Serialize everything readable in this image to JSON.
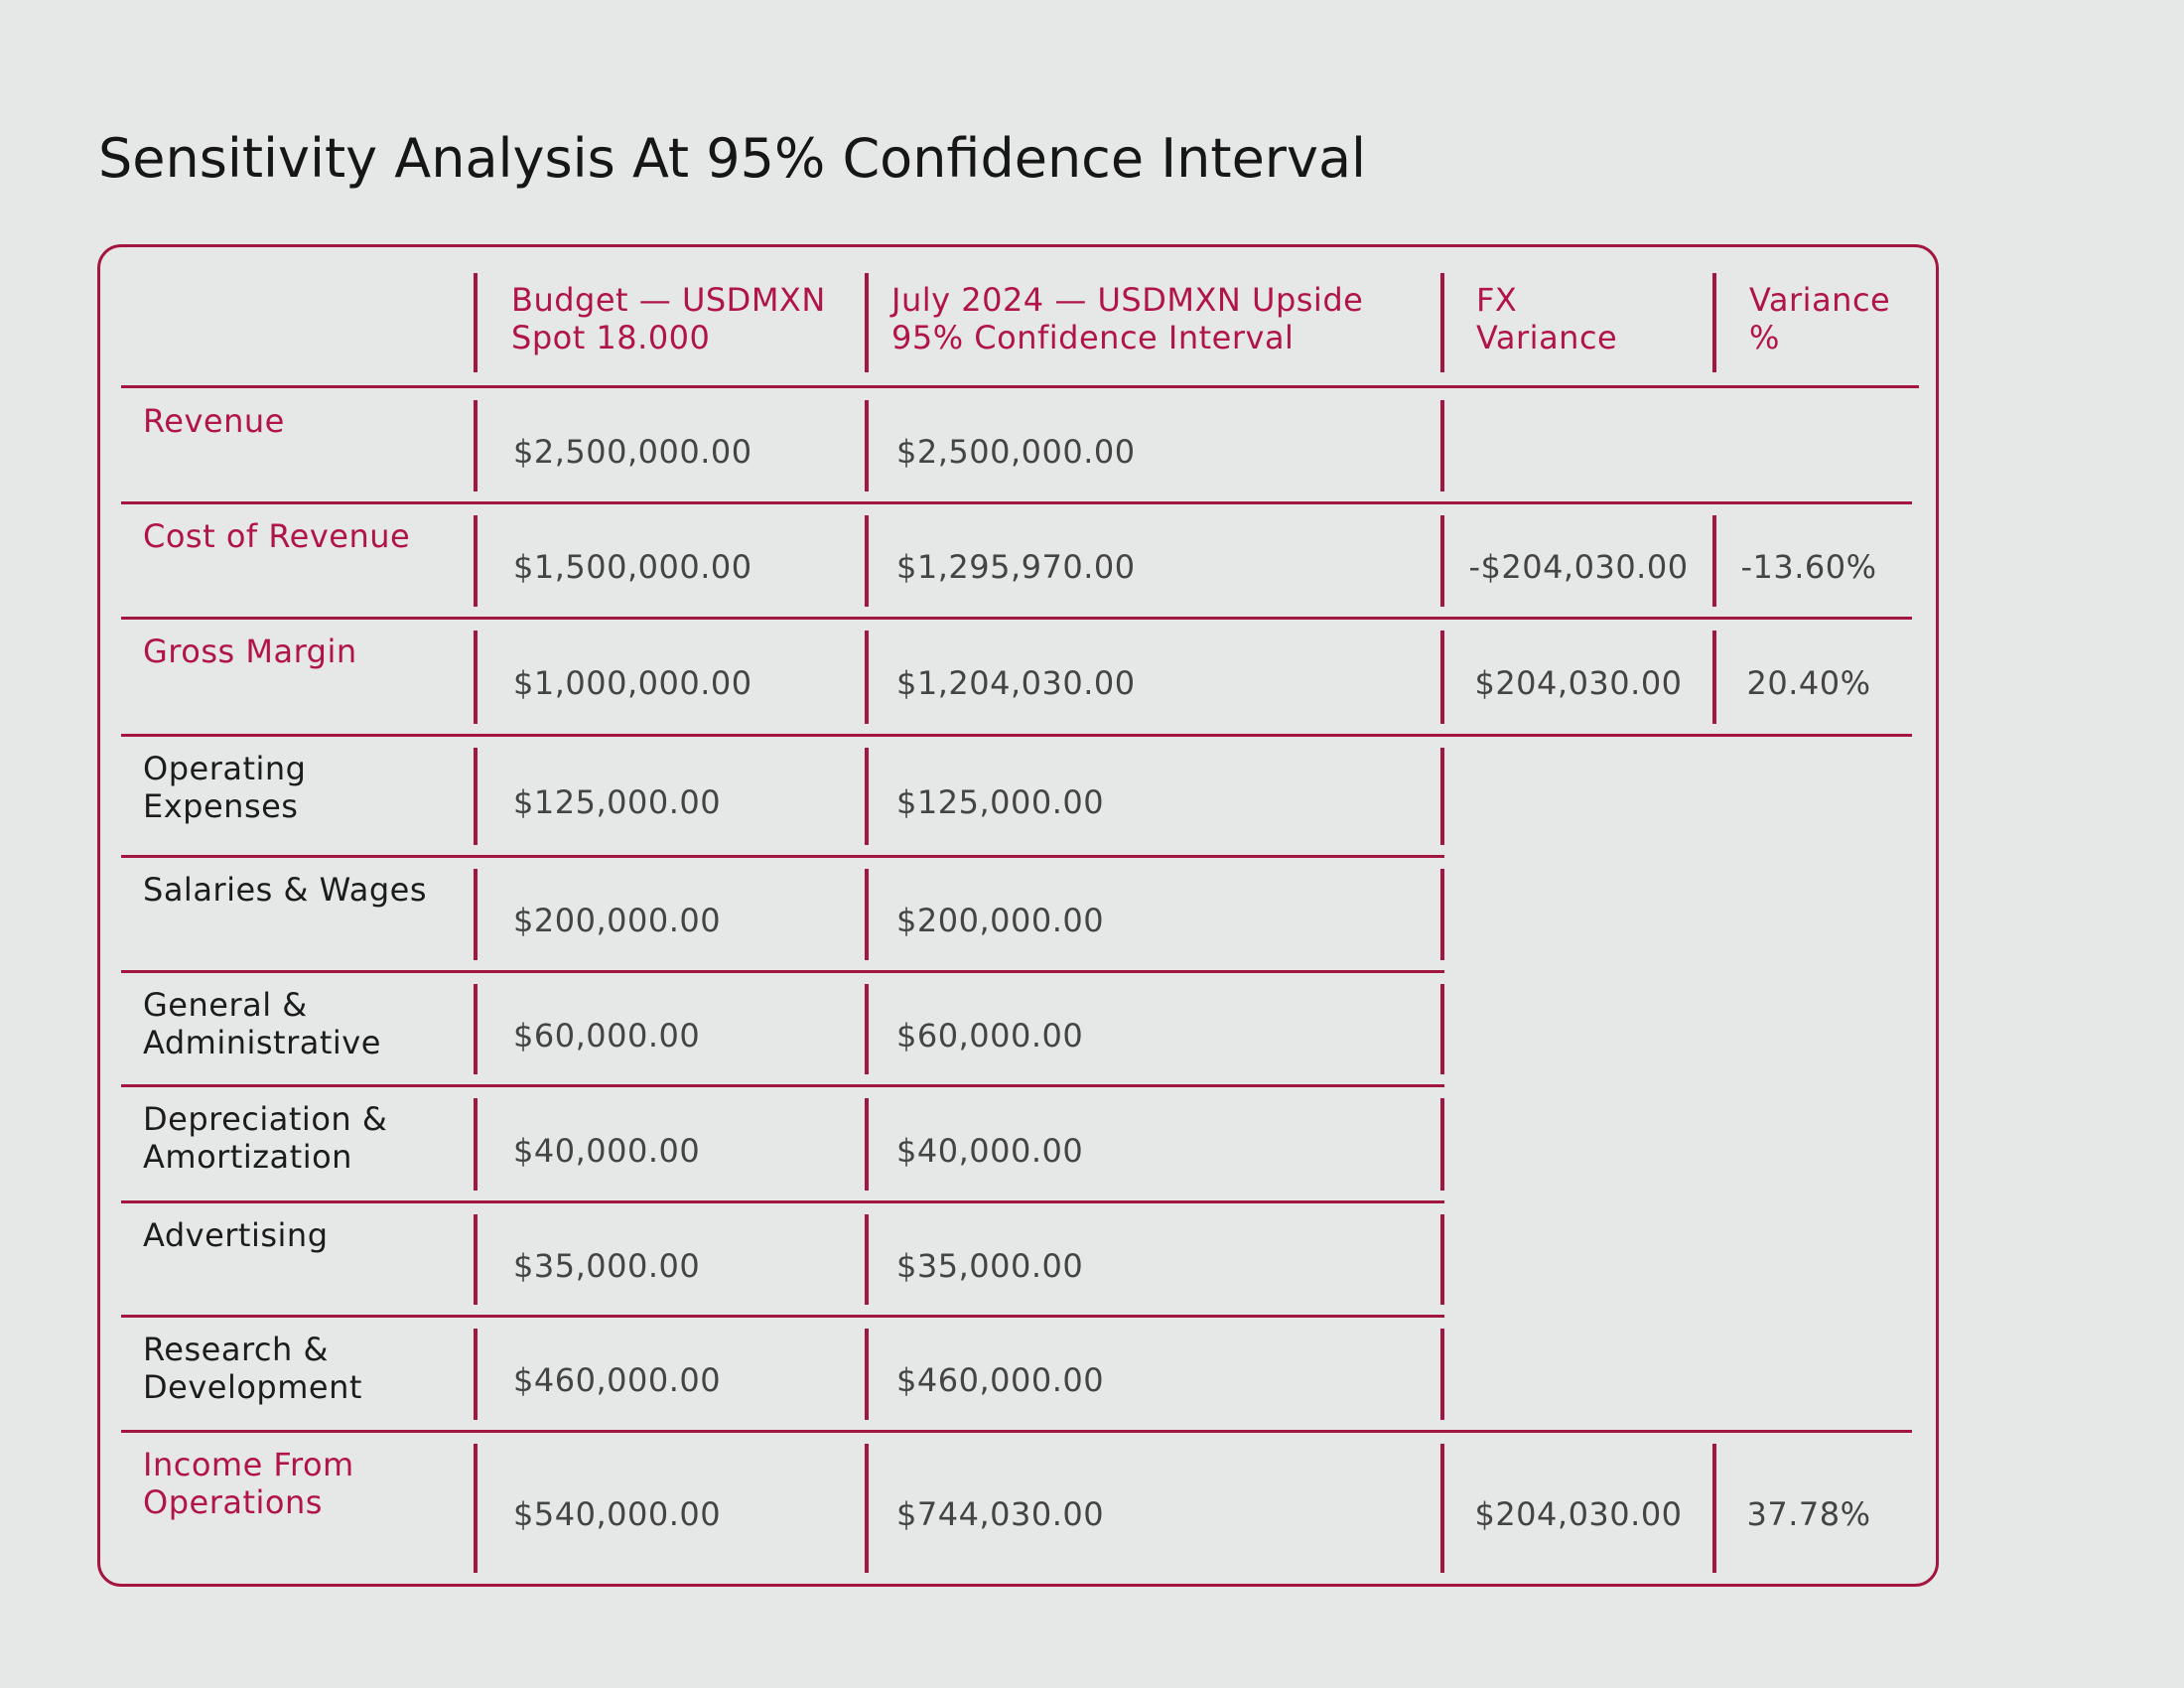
{
  "title": "Sensitivity Analysis At 95% Confidence Interval",
  "colors": {
    "accent": "#a3163f",
    "background": "#e6e8e7",
    "text": "#1c1c1c"
  },
  "table": {
    "headers": [
      "",
      "Budget — USDMXN\nSpot 18.000",
      "July 2024 — USDMXN Upside\n95% Confidence Interval",
      "FX\nVariance",
      "Variance\n%"
    ],
    "rows": [
      {
        "label": "Revenue",
        "budget": "$2,500,000.00",
        "july": "$2,500,000.00",
        "fx_variance": "",
        "variance_pct": "",
        "highlight": true
      },
      {
        "label": "Cost of Revenue",
        "budget": "$1,500,000.00",
        "july": "$1,295,970.00",
        "fx_variance": "-$204,030.00",
        "variance_pct": "-13.60%",
        "highlight": true
      },
      {
        "label": "Gross Margin",
        "budget": "$1,000,000.00",
        "july": "$1,204,030.00",
        "fx_variance": "$204,030.00",
        "variance_pct": "20.40%",
        "highlight": true
      },
      {
        "label": "Operating\nExpenses",
        "budget": "$125,000.00",
        "july": "$125,000.00",
        "fx_variance": "",
        "variance_pct": "",
        "highlight": false
      },
      {
        "label": "Salaries & Wages",
        "budget": "$200,000.00",
        "july": "$200,000.00",
        "fx_variance": "",
        "variance_pct": "",
        "highlight": false
      },
      {
        "label": "General &\nAdministrative",
        "budget": "$60,000.00",
        "july": "$60,000.00",
        "fx_variance": "",
        "variance_pct": "",
        "highlight": false
      },
      {
        "label": "Depreciation &\nAmortization",
        "budget": "$40,000.00",
        "july": "$40,000.00",
        "fx_variance": "",
        "variance_pct": "",
        "highlight": false
      },
      {
        "label": "Advertising",
        "budget": "$35,000.00",
        "july": "$35,000.00",
        "fx_variance": "",
        "variance_pct": "",
        "highlight": false
      },
      {
        "label": "Research &\nDevelopment",
        "budget": "$460,000.00",
        "july": "$460,000.00",
        "fx_variance": "",
        "variance_pct": "",
        "highlight": false
      },
      {
        "label": "Income From\nOperations",
        "budget": "$540,000.00",
        "july": "$744,030.00",
        "fx_variance": "$204,030.00",
        "variance_pct": "37.78%",
        "highlight": true
      }
    ]
  }
}
